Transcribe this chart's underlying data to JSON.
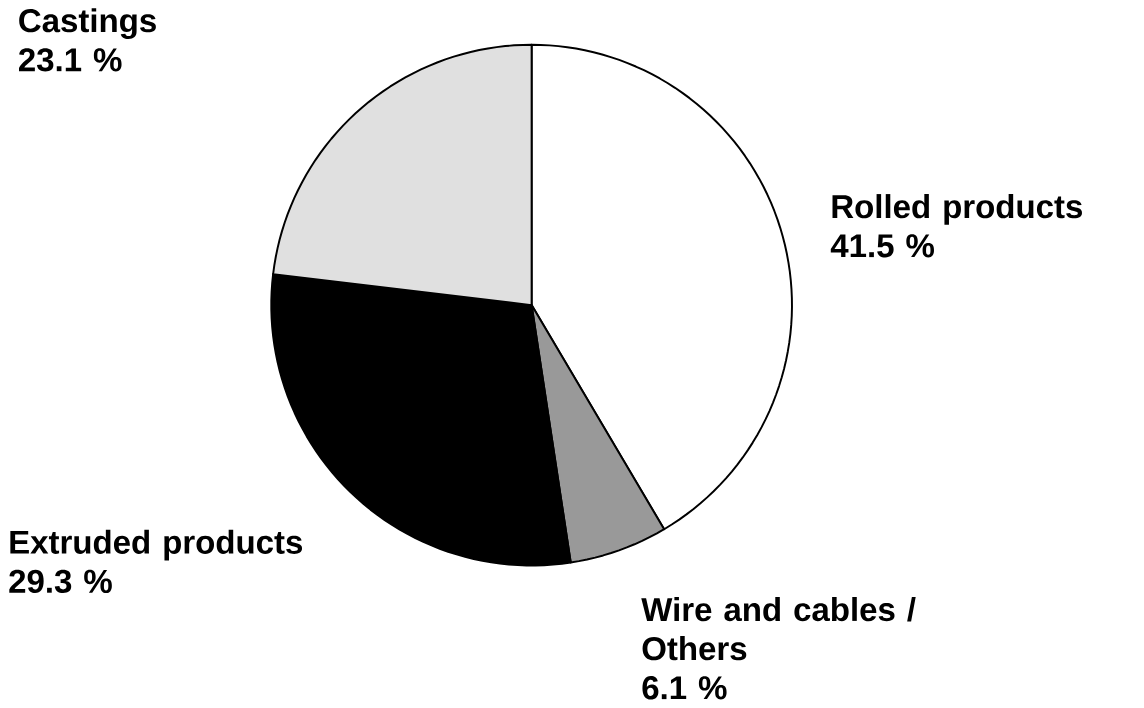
{
  "chart_data": {
    "type": "pie",
    "categories": [
      "Rolled products",
      "Wire and cables / Others",
      "Extruded products",
      "Castings"
    ],
    "values": [
      41.5,
      6.1,
      29.3,
      23.1
    ],
    "value_labels": [
      "41.5 %",
      "6.1 %",
      "29.3 %",
      "23.1 %"
    ],
    "colors": [
      "#ffffff",
      "#999999",
      "#000000",
      "#e0e0e0"
    ]
  }
}
